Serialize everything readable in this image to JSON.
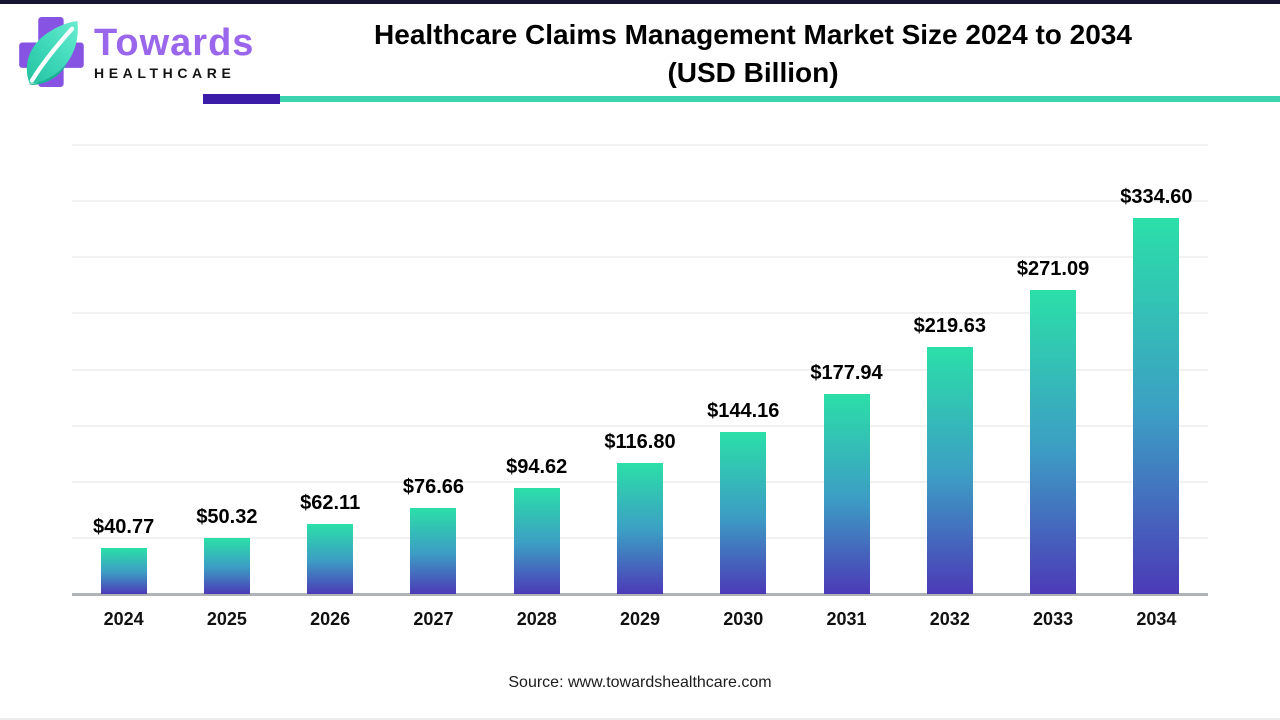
{
  "page": {
    "background": "#ffffff",
    "top_border_color": "#17152f"
  },
  "logo": {
    "brand": "Towards",
    "sub_brand": "HEALTHCARE",
    "cross_color": "#8753e3",
    "leaf_color_light": "#5fe6ca",
    "leaf_color_dark": "#23c1a0",
    "brand_text_color": "#9a66ec",
    "sub_brand_text_color": "#141414"
  },
  "header": {
    "title_line1": "Healthcare Claims Management Market Size 2024 to 2034",
    "title_line2": "(USD Billion)",
    "underline_purple_color": "#3a1ca8",
    "underline_teal_color": "#3bd4ae"
  },
  "chart_data": {
    "type": "bar",
    "title": "Healthcare Claims Management Market Size 2024 to 2034 (USD Billion)",
    "categories": [
      "2024",
      "2025",
      "2026",
      "2027",
      "2028",
      "2029",
      "2030",
      "2031",
      "2032",
      "2033",
      "2034"
    ],
    "values": [
      40.77,
      50.32,
      62.11,
      76.66,
      94.62,
      116.8,
      144.16,
      177.94,
      219.63,
      271.09,
      334.6
    ],
    "value_prefix": "$",
    "xlabel": "",
    "ylabel": "USD Billion",
    "ylim": [
      0,
      400
    ],
    "gridline_step": 50,
    "grid": true,
    "legend": false,
    "bar_gradient_top": "#2bdfa8",
    "bar_gradient_bottom": "#4c3ab7",
    "axis_line_color": "#b0b3b5"
  },
  "footer": {
    "source": "Source: www.towardshealthcare.com"
  }
}
